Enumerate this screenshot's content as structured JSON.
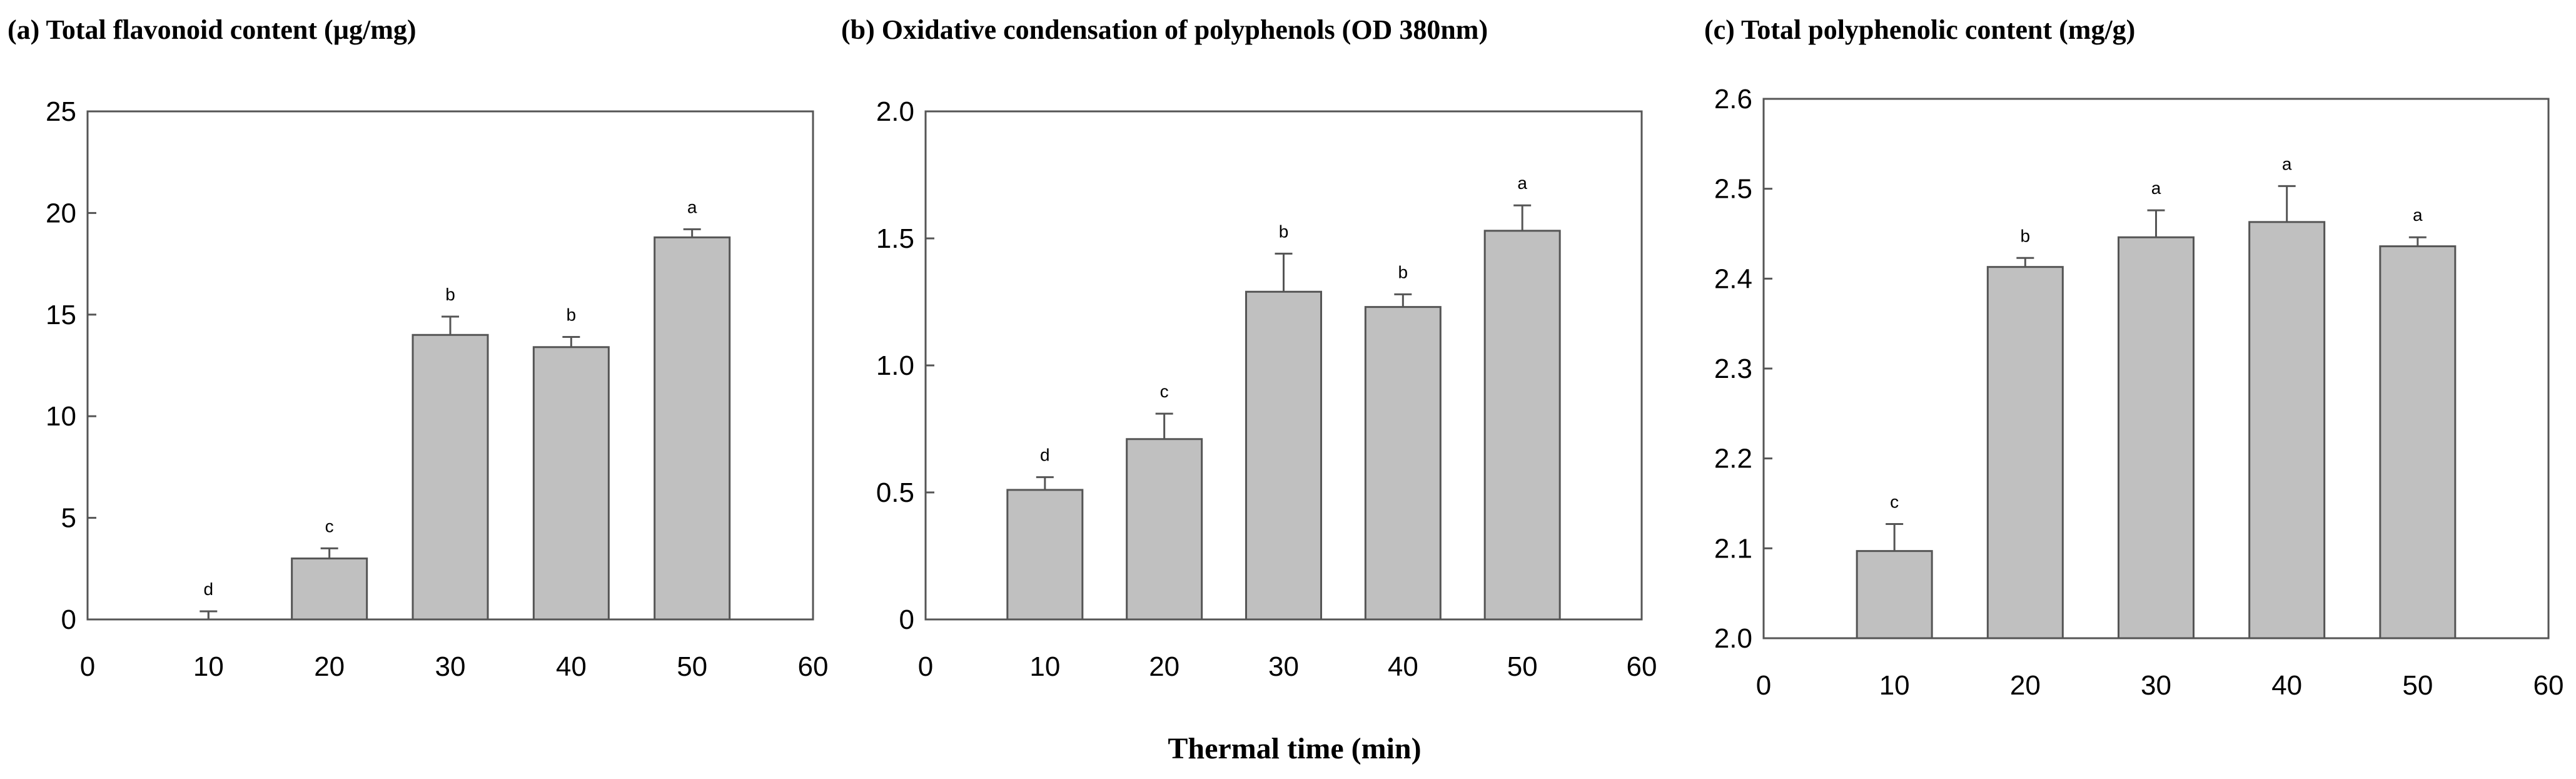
{
  "figure": {
    "shared_xlabel": "Thermal time (min)"
  },
  "chart_data": [
    {
      "type": "bar",
      "title": "(a) Total flavonoid content  (µg/mg)",
      "xlabel": "Thermal time (min)",
      "ylabel": "",
      "x": [
        10,
        20,
        30,
        40,
        50
      ],
      "values": [
        0,
        3.0,
        14.0,
        13.4,
        18.8
      ],
      "errors": [
        0.4,
        0.5,
        0.9,
        0.5,
        0.4
      ],
      "significance": [
        "d",
        "c",
        "b",
        "b",
        "a"
      ],
      "xlim": [
        0,
        60
      ],
      "ylim": [
        0,
        25
      ],
      "xticks": [
        0,
        10,
        20,
        30,
        40,
        50,
        60
      ],
      "yticks": [
        0,
        5,
        10,
        15,
        20,
        25
      ],
      "ytick_labels": [
        "0",
        "5",
        "10",
        "15",
        "20",
        "25"
      ]
    },
    {
      "type": "bar",
      "title": "(b) Oxidative condensation of polyphenols (OD 380nm)",
      "xlabel": "Thermal time (min)",
      "ylabel": "",
      "x": [
        10,
        20,
        30,
        40,
        50
      ],
      "values": [
        0.51,
        0.71,
        1.29,
        1.23,
        1.53
      ],
      "errors": [
        0.05,
        0.1,
        0.15,
        0.05,
        0.1
      ],
      "significance": [
        "d",
        "c",
        "b",
        "b",
        "a"
      ],
      "xlim": [
        0,
        60
      ],
      "ylim": [
        0,
        2.0
      ],
      "xticks": [
        0,
        10,
        20,
        30,
        40,
        50,
        60
      ],
      "yticks": [
        0,
        0.5,
        1.0,
        1.5,
        2.0
      ],
      "ytick_labels": [
        "0",
        "0.5",
        "1.0",
        "1.5",
        "2.0"
      ]
    },
    {
      "type": "bar",
      "title": "(c) Total polyphenolic content (mg/g)",
      "xlabel": "Thermal time (min)",
      "ylabel": "",
      "x": [
        10,
        20,
        30,
        40,
        50
      ],
      "values": [
        2.097,
        2.413,
        2.446,
        2.463,
        2.436
      ],
      "errors": [
        0.03,
        0.01,
        0.03,
        0.04,
        0.01
      ],
      "significance": [
        "c",
        "b",
        "a",
        "a",
        "a"
      ],
      "xlim": [
        0,
        60
      ],
      "ylim": [
        2.0,
        2.6
      ],
      "xticks": [
        0,
        10,
        20,
        30,
        40,
        50,
        60
      ],
      "yticks": [
        2.0,
        2.1,
        2.2,
        2.3,
        2.4,
        2.5,
        2.6
      ],
      "ytick_labels": [
        "2.0",
        "2.1",
        "2.2",
        "2.3",
        "2.4",
        "2.5",
        "2.6"
      ]
    }
  ]
}
